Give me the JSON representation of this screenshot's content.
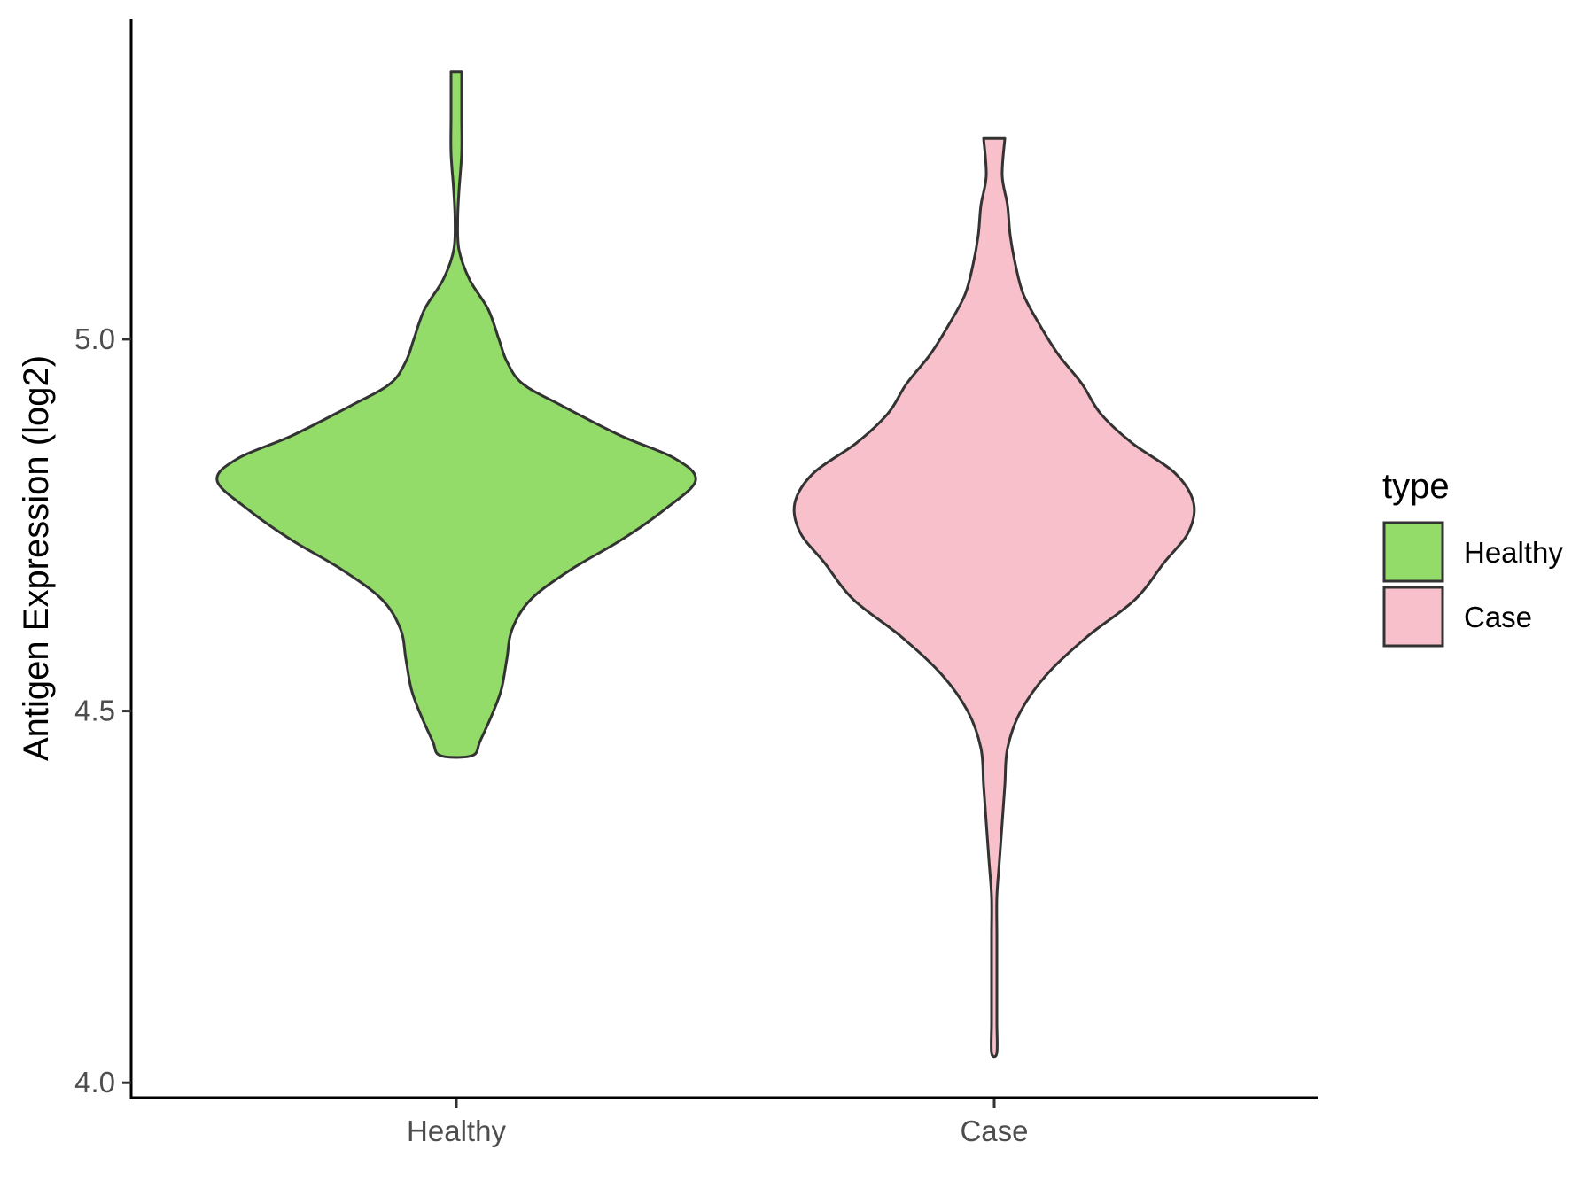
{
  "chart_data": {
    "type": "violin",
    "categories": [
      "Healthy",
      "Case"
    ],
    "ylabel": "Antigen Expression (log2)",
    "xlabel": "",
    "ylim": [
      3.98,
      5.43
    ],
    "yticks": [
      4.0,
      4.5,
      5.0
    ],
    "ytick_labels": [
      "4.0",
      "4.5",
      "5.0"
    ],
    "grid": false,
    "legend": {
      "title": "type",
      "position": "right",
      "items": [
        {
          "label": "Healthy",
          "color": "#93dc6a"
        },
        {
          "label": "Case",
          "color": "#f7c0cb"
        }
      ]
    },
    "series": [
      {
        "category": "Healthy",
        "color": "#93dc6a",
        "min": 4.44,
        "max": 5.36,
        "density_profile": [
          [
            4.44,
            0.06
          ],
          [
            4.46,
            0.09
          ],
          [
            4.5,
            0.14
          ],
          [
            4.53,
            0.17
          ],
          [
            4.57,
            0.19
          ],
          [
            4.61,
            0.21
          ],
          [
            4.65,
            0.28
          ],
          [
            4.69,
            0.43
          ],
          [
            4.73,
            0.62
          ],
          [
            4.77,
            0.78
          ],
          [
            4.81,
            0.9
          ],
          [
            4.84,
            0.82
          ],
          [
            4.87,
            0.62
          ],
          [
            4.91,
            0.4
          ],
          [
            4.94,
            0.25
          ],
          [
            4.97,
            0.19
          ],
          [
            5.0,
            0.16
          ],
          [
            5.04,
            0.12
          ],
          [
            5.08,
            0.05
          ],
          [
            5.12,
            0.01
          ],
          [
            5.16,
            0.005
          ],
          [
            5.2,
            0.01
          ],
          [
            5.25,
            0.02
          ],
          [
            5.3,
            0.02
          ],
          [
            5.36,
            0.02
          ]
        ]
      },
      {
        "category": "Case",
        "color": "#f7c0cb",
        "min": 4.04,
        "max": 5.27,
        "density_profile": [
          [
            4.04,
            0.01
          ],
          [
            4.08,
            0.01
          ],
          [
            4.12,
            0.01
          ],
          [
            4.16,
            0.01
          ],
          [
            4.2,
            0.01
          ],
          [
            4.25,
            0.01
          ],
          [
            4.3,
            0.02
          ],
          [
            4.35,
            0.03
          ],
          [
            4.4,
            0.04
          ],
          [
            4.45,
            0.05
          ],
          [
            4.5,
            0.1
          ],
          [
            4.55,
            0.2
          ],
          [
            4.6,
            0.35
          ],
          [
            4.65,
            0.53
          ],
          [
            4.7,
            0.64
          ],
          [
            4.74,
            0.73
          ],
          [
            4.78,
            0.75
          ],
          [
            4.82,
            0.68
          ],
          [
            4.86,
            0.52
          ],
          [
            4.9,
            0.4
          ],
          [
            4.94,
            0.33
          ],
          [
            4.98,
            0.24
          ],
          [
            5.02,
            0.17
          ],
          [
            5.06,
            0.11
          ],
          [
            5.1,
            0.08
          ],
          [
            5.14,
            0.06
          ],
          [
            5.18,
            0.05
          ],
          [
            5.22,
            0.03
          ],
          [
            5.27,
            0.04
          ]
        ]
      }
    ]
  }
}
